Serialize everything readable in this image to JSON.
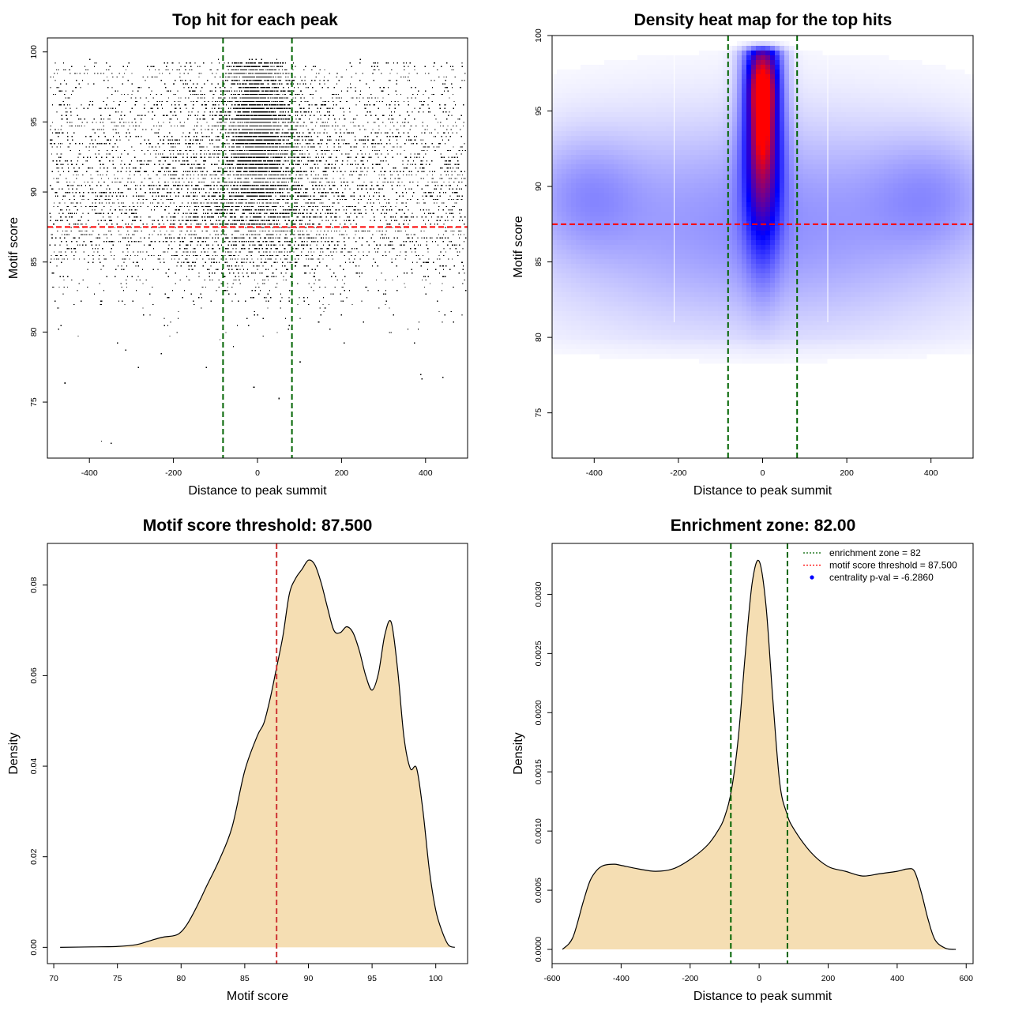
{
  "chart_data": [
    {
      "type": "scatter",
      "title": "Top hit for each peak",
      "xlabel": "Distance to peak summit",
      "ylabel": "Motif score",
      "xlim": [
        -500,
        500
      ],
      "ylim": [
        71,
        101
      ],
      "xticks": [
        -400,
        -200,
        0,
        200,
        400
      ],
      "yticks": [
        75,
        80,
        85,
        90,
        95,
        100
      ],
      "points_description": "roughly 15000 top-hit points, dense column centred at 0 (|x| < 80) with scores 88-99, wider background spread across -500..500 with scores 78-99",
      "sample_points": [
        {
          "x": -350,
          "y": 72.1
        },
        {
          "x": -460,
          "y": 76.4
        },
        {
          "x": -10,
          "y": 76.1
        },
        {
          "x": 50,
          "y": 75.3
        },
        {
          "x": 390,
          "y": 76.7
        },
        {
          "x": 440,
          "y": 76.8
        },
        {
          "x": -230,
          "y": 78.5
        },
        {
          "x": 100,
          "y": 77.9
        }
      ],
      "hlines": [
        {
          "y": 87.5,
          "color": "#ff0000",
          "style": "dashed"
        }
      ],
      "vlines": [
        {
          "x": -82,
          "color": "#006400",
          "style": "dashed"
        },
        {
          "x": 82,
          "color": "#006400",
          "style": "dashed"
        }
      ],
      "grid": false
    },
    {
      "type": "heatmap",
      "title": "Density heat map for the top hits",
      "xlabel": "Distance to peak summit",
      "ylabel": "Motif score",
      "xlim": [
        -500,
        500
      ],
      "ylim": [
        72,
        100
      ],
      "xticks": [
        -400,
        -200,
        0,
        200,
        400
      ],
      "yticks": [
        75,
        80,
        85,
        90,
        95,
        100
      ],
      "colors": [
        "#ffffff",
        "#0000ff",
        "#ff0000"
      ],
      "density_blobs": [
        {
          "x": 0,
          "y": 93,
          "sx": 30,
          "sy": 4.5,
          "w": 1.0
        },
        {
          "x": 0,
          "y": 96.3,
          "sx": 20,
          "sy": 1.4,
          "w": 0.75
        },
        {
          "x": 0,
          "y": 93.5,
          "sx": 16,
          "sy": 1.4,
          "w": 0.35
        },
        {
          "x": 0,
          "y": 98.3,
          "sx": 28,
          "sy": 1.5,
          "w": 0.3
        },
        {
          "x": 0,
          "y": 87.5,
          "sx": 360,
          "sy": 4.5,
          "w": 0.2
        },
        {
          "x": -420,
          "y": 89.5,
          "sx": 90,
          "sy": 2.5,
          "w": 0.13
        },
        {
          "x": 400,
          "y": 89.5,
          "sx": 100,
          "sy": 2.5,
          "w": 0.12
        }
      ],
      "hlines": [
        {
          "y": 87.5,
          "color": "#ff0000",
          "style": "dashed"
        }
      ],
      "vlines": [
        {
          "x": -82,
          "color": "#006400",
          "style": "dashed"
        },
        {
          "x": 82,
          "color": "#006400",
          "style": "dashed"
        }
      ],
      "grid": false
    },
    {
      "type": "area",
      "title": "Motif score threshold: 87.500",
      "xlabel": "Motif score",
      "ylabel": "Density",
      "xlim": [
        69.5,
        102.5
      ],
      "ylim": [
        -0.0036,
        0.0892
      ],
      "xticks": [
        70,
        75,
        80,
        85,
        90,
        95,
        100
      ],
      "yticks": [
        0.0,
        0.02,
        0.04,
        0.06,
        0.08
      ],
      "ytick_labels": [
        "0.00",
        "0.02",
        "0.04",
        "0.06",
        "0.08"
      ],
      "x": [
        70.5,
        73,
        75,
        76.5,
        77.5,
        78.5,
        79.5,
        80,
        80.5,
        81,
        81.5,
        82,
        83,
        84,
        85,
        86,
        86.5,
        87,
        87.5,
        88,
        88.5,
        89,
        89.5,
        90,
        90.5,
        91,
        91.5,
        92,
        92.5,
        93,
        93.5,
        94,
        94.5,
        95,
        95.5,
        96,
        96.5,
        97,
        97.5,
        98,
        98.5,
        99,
        99.5,
        100,
        100.5,
        101,
        101.5
      ],
      "y": [
        0,
        0.0001,
        0.0002,
        0.0006,
        0.0014,
        0.0022,
        0.0026,
        0.0034,
        0.0052,
        0.0077,
        0.0105,
        0.0135,
        0.0193,
        0.0265,
        0.039,
        0.0468,
        0.0495,
        0.055,
        0.0618,
        0.0688,
        0.078,
        0.0815,
        0.0835,
        0.0855,
        0.0845,
        0.0805,
        0.075,
        0.07,
        0.0695,
        0.0708,
        0.0695,
        0.0655,
        0.06,
        0.0568,
        0.0605,
        0.069,
        0.0718,
        0.0615,
        0.0465,
        0.0395,
        0.0395,
        0.03,
        0.017,
        0.0082,
        0.0035,
        0.0005,
        0
      ],
      "fill": "#f5deb3",
      "vlines": [
        {
          "x": 87.5,
          "color": "#cd3333",
          "style": "dashed"
        }
      ],
      "grid": false
    },
    {
      "type": "area",
      "title": "Enrichment zone: 82.00",
      "xlabel": "Distance to peak summit",
      "ylabel": "Density",
      "xlim": [
        -600,
        620
      ],
      "ylim": [
        -0.00012,
        0.00343
      ],
      "xticks": [
        -600,
        -400,
        -200,
        0,
        200,
        400,
        600
      ],
      "yticks": [
        0.0,
        0.0005,
        0.001,
        0.0015,
        0.002,
        0.0025,
        0.003
      ],
      "ytick_labels": [
        "0.0000",
        "0.0005",
        "0.0010",
        "0.0015",
        "0.0020",
        "0.0025",
        "0.0030"
      ],
      "x": [
        -570,
        -540,
        -510,
        -490,
        -470,
        -450,
        -420,
        -400,
        -350,
        -300,
        -250,
        -200,
        -150,
        -120,
        -100,
        -80,
        -60,
        -40,
        -20,
        0,
        20,
        40,
        60,
        80,
        100,
        150,
        200,
        250,
        300,
        350,
        400,
        430,
        450,
        470,
        490,
        510,
        540,
        570
      ],
      "y": [
        0.0,
        0.0001,
        0.0004,
        0.00058,
        0.00067,
        0.00071,
        0.00072,
        0.00071,
        0.00068,
        0.00066,
        0.00068,
        0.00076,
        0.00088,
        0.001,
        0.00112,
        0.00135,
        0.0018,
        0.0025,
        0.0031,
        0.00328,
        0.0029,
        0.0021,
        0.0014,
        0.00115,
        0.00102,
        0.00082,
        0.0007,
        0.00066,
        0.00062,
        0.00064,
        0.00066,
        0.00068,
        0.00066,
        0.00048,
        0.00025,
        8e-05,
        1e-05,
        0.0
      ],
      "fill": "#f5deb3",
      "vlines": [
        {
          "x": -82,
          "color": "#006400",
          "style": "dashed"
        },
        {
          "x": 82,
          "color": "#006400",
          "style": "dashed"
        }
      ],
      "legend": {
        "position": "top-right",
        "entries": [
          {
            "label": "enrichment zone = 82",
            "color": "#006400",
            "style": "dotted-line"
          },
          {
            "label": "motif score threshold = 87.500",
            "color": "#ff0000",
            "style": "dotted-line"
          },
          {
            "label": "centrality p-val = -6.2860",
            "color": "#0000ff",
            "style": "point"
          }
        ]
      },
      "grid": false
    }
  ]
}
